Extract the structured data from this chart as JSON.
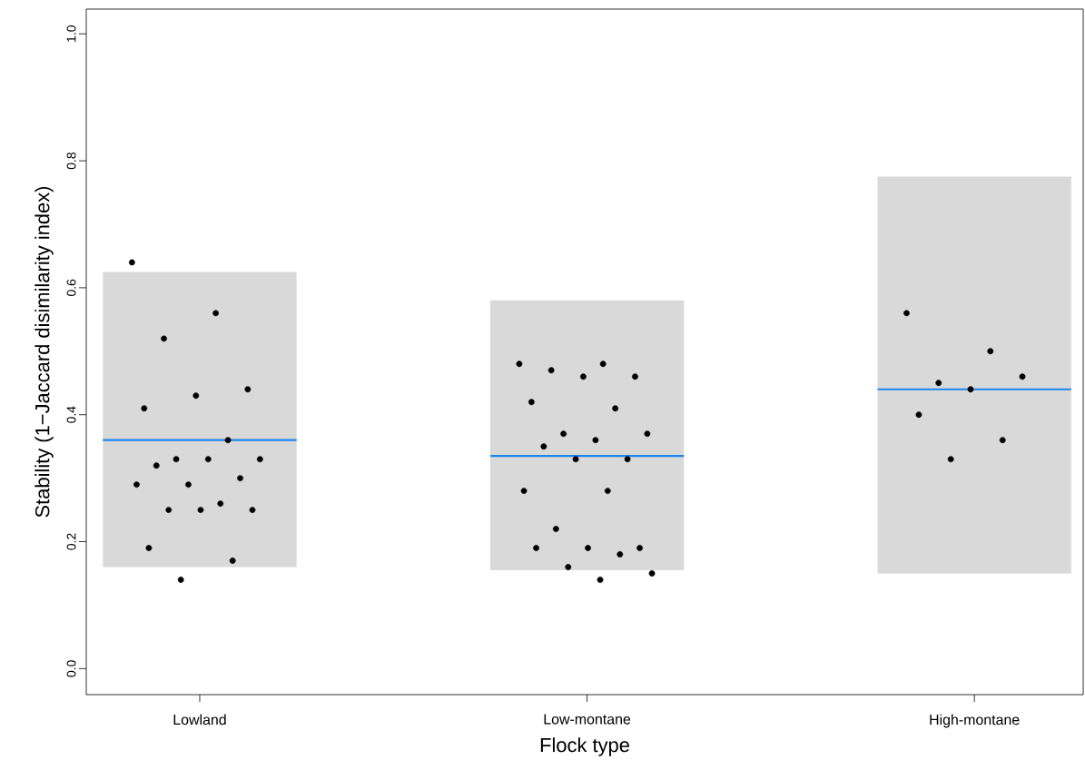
{
  "chart_data": {
    "type": "box",
    "xlabel": "Flock type",
    "ylabel": "Stability  (1−Jaccard disimilarity index)",
    "categories": [
      "Lowland",
      "Low-montane",
      "High-montane"
    ],
    "ylim": [
      -0.041,
      1.039
    ],
    "yticks": [
      {
        "value": 0,
        "label": "0.0"
      },
      {
        "value": 0.2,
        "label": "0.2"
      },
      {
        "value": 0.4,
        "label": "0.4"
      },
      {
        "value": 0.6,
        "label": "0.6"
      },
      {
        "value": 0.8,
        "label": "0.8"
      },
      {
        "value": 1,
        "label": "1.0"
      }
    ],
    "series": [
      {
        "color": "#d9d9d9",
        "boxes": [
          {
            "low": 0.16,
            "q1": 0.16,
            "median": 0.36,
            "q3": 0.625,
            "high": 0.625
          },
          {
            "low": 0.155,
            "q1": 0.155,
            "median": 0.335,
            "q3": 0.58,
            "high": 0.58
          },
          {
            "low": 0.15,
            "q1": 0.15,
            "median": 0.44,
            "q3": 0.775,
            "high": 0.775
          }
        ]
      },
      {
        "type": "scatter",
        "color": "#000000",
        "x": [
          "Lowland",
          "Lowland",
          "Lowland",
          "Lowland",
          "Lowland",
          "Lowland",
          "Lowland",
          "Lowland",
          "Lowland",
          "Lowland",
          "Lowland",
          "Lowland",
          "Lowland",
          "Lowland",
          "Lowland",
          "Lowland",
          "Lowland",
          "Lowland",
          "Lowland",
          "Lowland",
          "Lowland",
          "Low-montane",
          "Low-montane",
          "Low-montane",
          "Low-montane",
          "Low-montane",
          "Low-montane",
          "Low-montane",
          "Low-montane",
          "Low-montane",
          "Low-montane",
          "Low-montane",
          "Low-montane",
          "Low-montane",
          "Low-montane",
          "Low-montane",
          "Low-montane",
          "Low-montane",
          "Low-montane",
          "Low-montane",
          "Low-montane",
          "Low-montane",
          "Low-montane",
          "Low-montane",
          "High-montane",
          "High-montane",
          "High-montane",
          "High-montane",
          "High-montane",
          "High-montane",
          "High-montane",
          "High-montane"
        ],
        "values": [
          0.64,
          0.56,
          0.52,
          0.44,
          0.43,
          0.41,
          0.36,
          0.33,
          0.33,
          0.33,
          0.32,
          0.3,
          0.29,
          0.29,
          0.26,
          0.25,
          0.25,
          0.25,
          0.19,
          0.17,
          0.14,
          0.48,
          0.48,
          0.47,
          0.46,
          0.46,
          0.42,
          0.41,
          0.37,
          0.37,
          0.36,
          0.35,
          0.33,
          0.33,
          0.28,
          0.28,
          0.22,
          0.19,
          0.19,
          0.19,
          0.18,
          0.16,
          0.15,
          0.14,
          0.56,
          0.5,
          0.45,
          0.46,
          0.44,
          0.4,
          0.36,
          0.33
        ]
      }
    ]
  }
}
